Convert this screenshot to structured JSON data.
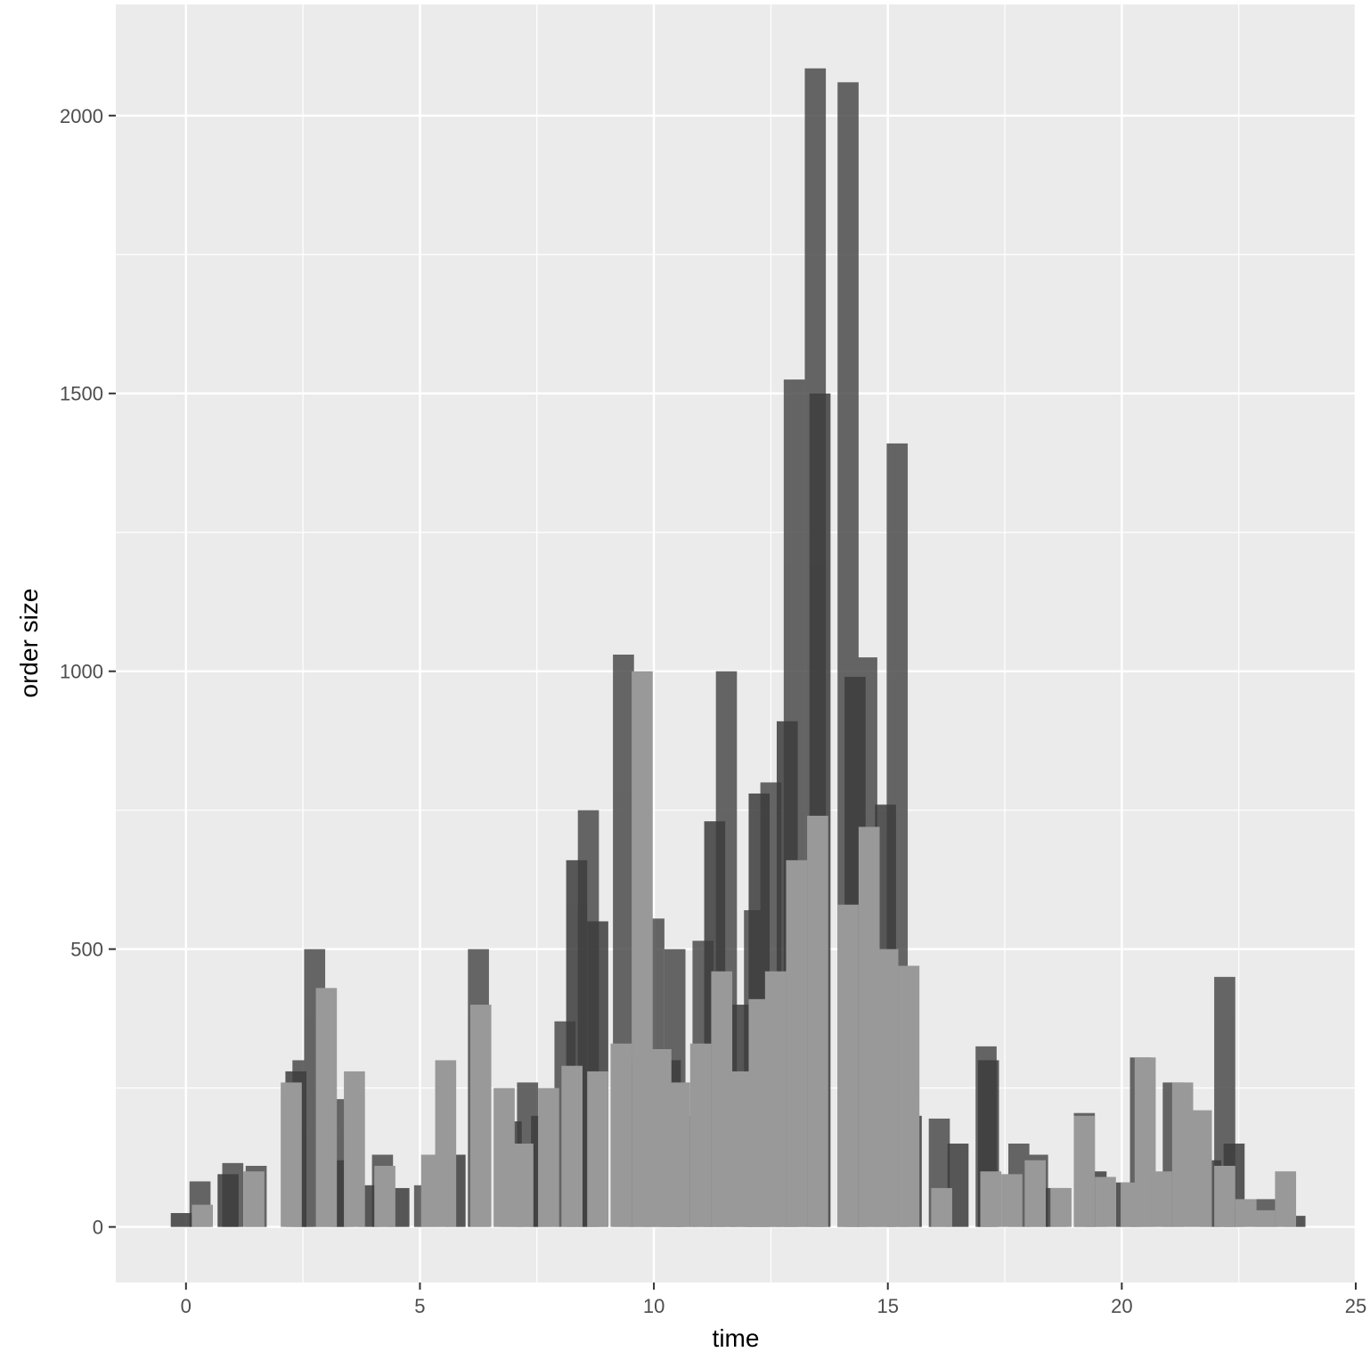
{
  "chart_data": {
    "type": "bar",
    "title": "",
    "xlabel": "time",
    "ylabel": "order size",
    "xlim": [
      -1.5,
      25
    ],
    "ylim": [
      -100,
      2200
    ],
    "x_ticks": [
      "0",
      "5",
      "10",
      "15",
      "20",
      "25"
    ],
    "y_ticks": [
      "0",
      "500",
      "1000",
      "1500",
      "2000"
    ],
    "grid": true,
    "legend": "none",
    "bar_width": 0.45,
    "layers": [
      {
        "color": "#4d4d4d",
        "opacity": 0.85,
        "x": [
          0.3,
          1.0,
          1.5,
          2.5,
          2.75,
          3.2,
          4.2,
          5.1,
          6.25,
          7.3,
          8.1,
          8.6,
          9.35,
          10.0,
          10.45,
          11.05,
          11.55,
          12.15,
          12.5,
          13.0,
          13.45,
          14.15,
          14.55,
          15.2,
          16.1,
          17.1,
          17.8,
          18.2,
          19.2,
          20.4,
          21.1,
          22.2,
          23.1
        ],
        "values": [
          82,
          115,
          110,
          300,
          500,
          230,
          130,
          75,
          500,
          260,
          370,
          750,
          1030,
          555,
          500,
          515,
          1000,
          570,
          800,
          1525,
          2085,
          2060,
          1025,
          1410,
          195,
          325,
          150,
          130,
          205,
          305,
          260,
          450,
          50
        ]
      },
      {
        "color": "#3d3d3d",
        "opacity": 0.85,
        "x": [
          -0.1,
          0.9,
          2.35,
          3.35,
          3.9,
          4.55,
          5.75,
          6.95,
          7.6,
          8.35,
          8.8,
          9.7,
          10.35,
          10.7,
          11.3,
          11.85,
          12.25,
          12.85,
          13.55,
          14.3,
          14.95,
          15.5,
          16.5,
          17.15,
          18.6,
          19.45,
          20.1,
          21.9,
          22.4,
          23.7
        ],
        "values": [
          25,
          95,
          280,
          120,
          75,
          70,
          130,
          190,
          200,
          660,
          550,
          300,
          300,
          200,
          730,
          400,
          780,
          910,
          1500,
          990,
          760,
          200,
          150,
          300,
          70,
          100,
          80,
          120,
          150,
          20
        ]
      },
      {
        "color": "#999999",
        "opacity": 1,
        "x": [
          0.35,
          1.45,
          2.25,
          3.0,
          3.6,
          4.25,
          5.25,
          5.55,
          6.3,
          6.8,
          7.2,
          7.75,
          8.25,
          8.8,
          9.3,
          9.75,
          10.15,
          10.55,
          11.0,
          11.45,
          11.85,
          12.25,
          12.6,
          13.05,
          13.5,
          14.15,
          14.6,
          15.0,
          15.45,
          16.15,
          17.2,
          17.65,
          18.15,
          18.7,
          19.2,
          19.65,
          20.2,
          20.5,
          20.85,
          21.3,
          21.7,
          22.2,
          22.65,
          23.05,
          23.5
        ],
        "values": [
          40,
          100,
          260,
          430,
          280,
          110,
          130,
          300,
          400,
          250,
          150,
          250,
          290,
          280,
          330,
          1000,
          320,
          260,
          330,
          460,
          280,
          410,
          460,
          660,
          740,
          580,
          720,
          500,
          470,
          70,
          100,
          95,
          120,
          70,
          200,
          90,
          80,
          305,
          100,
          260,
          210,
          110,
          50,
          30,
          100
        ]
      }
    ]
  }
}
